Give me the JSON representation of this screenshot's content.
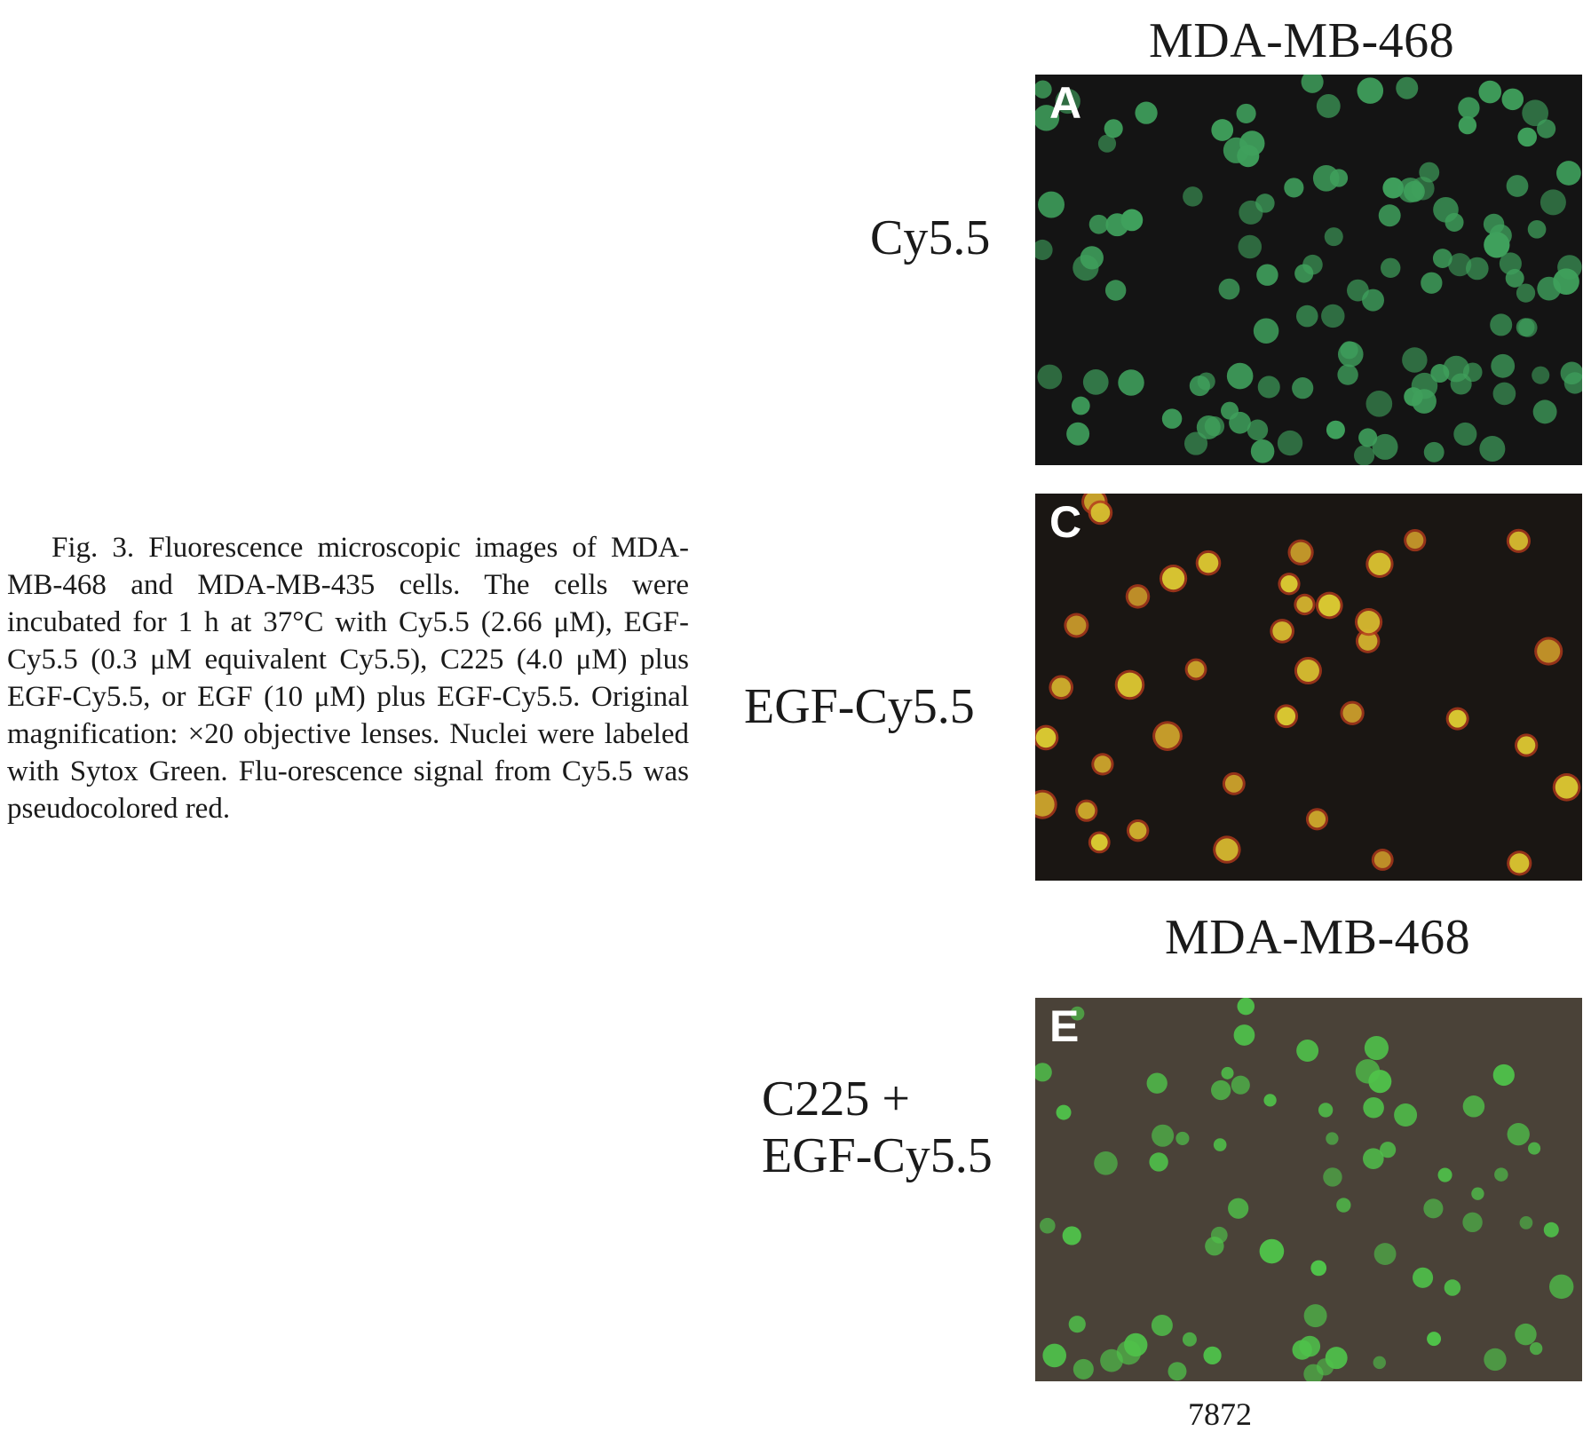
{
  "caption": {
    "fig_label": "Fig. 3.",
    "text_before_um1": " Fluorescence microscopic images of MDA-MB-468 and MDA-MB-435 cells. The cells were incubated for 1 h at 37°C with Cy5.5 (2.66 ",
    "unit": "μM",
    "text_between_1_2": "), EGF-Cy5.5 (0.3 ",
    "text_between_2_3": " equivalent Cy5.5), C225 (4.0 ",
    "text_between_3_4": ") plus EGF-Cy5.5, or EGF (10 ",
    "text_after_um4": ") plus EGF-Cy5.5. Original magnification: ×20 objective lenses. Nuclei were labeled with Sytox Green. Flu-orescence signal from Cy5.5 was pseudocolored red."
  },
  "headers": {
    "top": "MDA-MB-468",
    "middle": "MDA-MB-468"
  },
  "rows": [
    {
      "label_lines": [
        "Cy5.5"
      ],
      "panel_letter": "A",
      "background": "#141414",
      "cell_color": "#3fa05c"
    },
    {
      "label_lines": [
        "EGF-Cy5.5"
      ],
      "panel_letter": "C",
      "background": "#1a1613",
      "cell_color": "#d8c832"
    },
    {
      "label_lines": [
        "C225 +",
        "EGF-Cy5.5"
      ],
      "panel_letter": "E",
      "background": "#4a4238",
      "cell_color": "#4fc24a"
    }
  ],
  "page_number": "7872"
}
